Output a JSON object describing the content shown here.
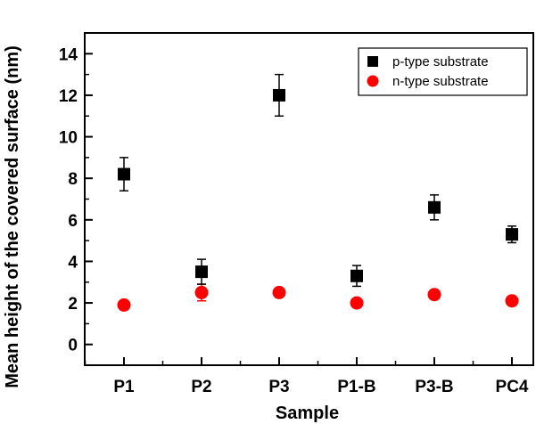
{
  "chart_data": {
    "type": "scatter",
    "xlabel": "Sample",
    "ylabel": "Mean height of the covered surface (nm)",
    "categories": [
      "P1",
      "P2",
      "P3",
      "P1-B",
      "P3-B",
      "PC4"
    ],
    "ylim": [
      -1,
      15
    ],
    "yticks": [
      0,
      2,
      4,
      6,
      8,
      10,
      12,
      14
    ],
    "grid": false,
    "legend_position": "top-right",
    "series": [
      {
        "name": "p-type substrate",
        "marker": "square",
        "color": "#000000",
        "values": [
          8.2,
          3.5,
          12.0,
          3.3,
          6.6,
          5.3
        ],
        "errors": [
          0.8,
          0.6,
          1.0,
          0.5,
          0.6,
          0.4
        ]
      },
      {
        "name": "n-type substrate",
        "marker": "circle",
        "color": "#ff0000",
        "values": [
          1.9,
          2.5,
          2.5,
          2.0,
          2.4,
          2.1
        ],
        "errors": [
          0.1,
          0.4,
          0.1,
          0.1,
          0.15,
          0.15
        ]
      }
    ]
  }
}
